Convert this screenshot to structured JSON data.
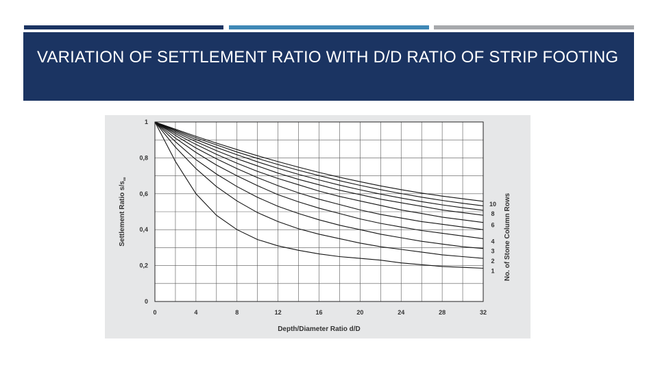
{
  "slide": {
    "title": "VARIATION OF SETTLEMENT RATIO WITH D/D RATIO OF STRIP FOOTING",
    "colors": {
      "header_bg": "#1b3462",
      "bar1": "#1b3462",
      "bar2": "#3f88b6",
      "bar3": "#a7a9ac",
      "figure_bg": "#e6e7e8"
    }
  },
  "chart_data": {
    "type": "line",
    "title": "",
    "xlabel": "Depth/Diameter Ratio d/D",
    "ylabel": "Settlement Ratio s/s",
    "ylabel_subscript": "∞",
    "secondary_label": "No. of Stone Column Rows",
    "xlim": [
      0,
      32
    ],
    "ylim": [
      0,
      1
    ],
    "grid": true,
    "xticks": [
      0,
      4,
      8,
      12,
      16,
      20,
      24,
      28,
      32
    ],
    "xtick_labels": [
      "0",
      "4",
      "8",
      "12",
      "16",
      "20",
      "24",
      "28",
      "32"
    ],
    "yticks": [
      0,
      0.2,
      0.4,
      0.6,
      0.8,
      1
    ],
    "ytick_labels": [
      "0",
      "0,2",
      "0,4",
      "0,6",
      "0,8",
      "1"
    ],
    "x": [
      0,
      2,
      4,
      6,
      8,
      10,
      12,
      14,
      16,
      18,
      20,
      22,
      24,
      26,
      28,
      30,
      32
    ],
    "series": [
      {
        "name": "1",
        "values": [
          1.0,
          0.78,
          0.6,
          0.48,
          0.4,
          0.345,
          0.31,
          0.285,
          0.265,
          0.25,
          0.24,
          0.23,
          0.215,
          0.205,
          0.195,
          0.19,
          0.185
        ]
      },
      {
        "name": "2",
        "values": [
          1.0,
          0.86,
          0.74,
          0.64,
          0.56,
          0.495,
          0.445,
          0.405,
          0.375,
          0.35,
          0.325,
          0.305,
          0.29,
          0.275,
          0.26,
          0.25,
          0.24
        ]
      },
      {
        "name": "3",
        "values": [
          1.0,
          0.89,
          0.79,
          0.71,
          0.64,
          0.58,
          0.53,
          0.49,
          0.455,
          0.425,
          0.4,
          0.375,
          0.355,
          0.335,
          0.32,
          0.305,
          0.295
        ]
      },
      {
        "name": "4",
        "values": [
          1.0,
          0.91,
          0.83,
          0.76,
          0.7,
          0.645,
          0.595,
          0.555,
          0.52,
          0.49,
          0.46,
          0.435,
          0.415,
          0.395,
          0.38,
          0.365,
          0.35
        ]
      },
      {
        "name": "",
        "values": [
          1.0,
          0.925,
          0.855,
          0.795,
          0.74,
          0.69,
          0.645,
          0.605,
          0.57,
          0.54,
          0.51,
          0.485,
          0.465,
          0.445,
          0.43,
          0.415,
          0.4
        ]
      },
      {
        "name": "6",
        "values": [
          1.0,
          0.935,
          0.875,
          0.82,
          0.77,
          0.725,
          0.685,
          0.65,
          0.615,
          0.585,
          0.56,
          0.535,
          0.51,
          0.49,
          0.47,
          0.455,
          0.44
        ]
      },
      {
        "name": "",
        "values": [
          1.0,
          0.943,
          0.89,
          0.84,
          0.795,
          0.755,
          0.715,
          0.68,
          0.65,
          0.62,
          0.595,
          0.57,
          0.55,
          0.53,
          0.51,
          0.495,
          0.48
        ]
      },
      {
        "name": "8",
        "values": [
          1.0,
          0.95,
          0.902,
          0.858,
          0.817,
          0.778,
          0.742,
          0.708,
          0.677,
          0.648,
          0.622,
          0.598,
          0.576,
          0.556,
          0.538,
          0.522,
          0.508
        ]
      },
      {
        "name": "",
        "values": [
          1.0,
          0.955,
          0.912,
          0.872,
          0.833,
          0.797,
          0.763,
          0.731,
          0.701,
          0.673,
          0.647,
          0.623,
          0.601,
          0.581,
          0.563,
          0.547,
          0.533
        ]
      },
      {
        "name": "10",
        "values": [
          1.0,
          0.96,
          0.92,
          0.882,
          0.846,
          0.812,
          0.779,
          0.748,
          0.719,
          0.692,
          0.667,
          0.644,
          0.623,
          0.604,
          0.587,
          0.572,
          0.558
        ]
      }
    ]
  }
}
